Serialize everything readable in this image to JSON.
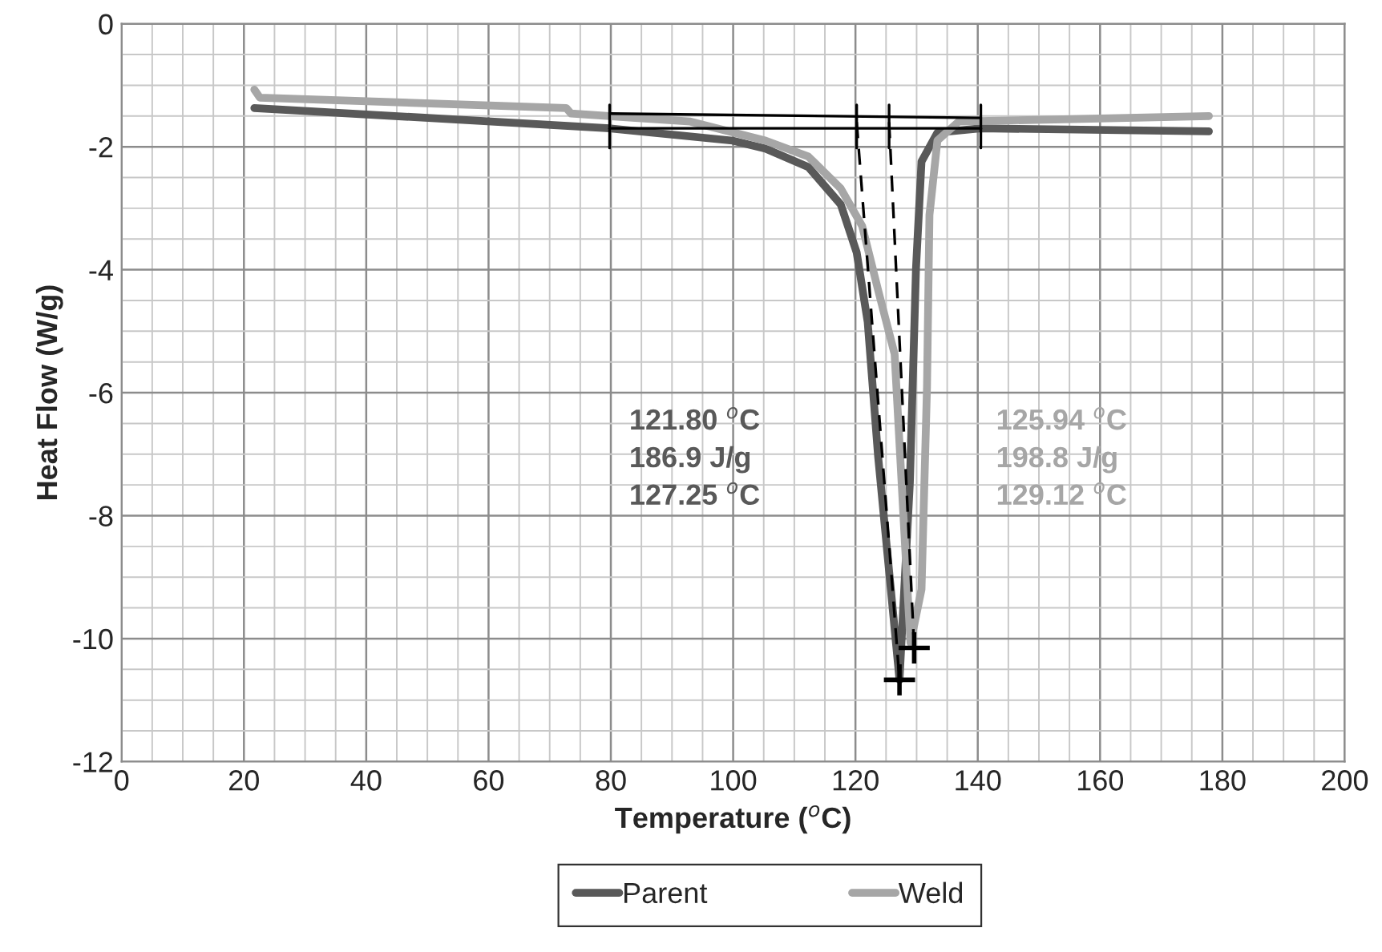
{
  "chart_data": {
    "type": "line",
    "xlabel": "Temperature ($^{o}$C)",
    "ylabel": "Heat Flow (W/g)",
    "xlim": [
      0,
      200
    ],
    "ylim": [
      -12,
      0
    ],
    "xticks": [
      0,
      20,
      40,
      60,
      80,
      100,
      120,
      140,
      160,
      180,
      200
    ],
    "yticks": [
      0,
      -2,
      -4,
      -6,
      -8,
      -10,
      -12
    ],
    "grid": true,
    "legend": "bottom",
    "series": [
      {
        "name": "Parent",
        "color": "#595959",
        "x": [
          21.7,
          79.8,
          99.9,
          105.3,
          112.3,
          117.6,
          120.2,
          122.0,
          123.7,
          127.2,
          128.9,
          129.9,
          130.8,
          133.4,
          140.5,
          177.8
        ],
        "values": [
          -1.37,
          -1.7,
          -1.9,
          -2.03,
          -2.33,
          -2.94,
          -3.72,
          -4.85,
          -7.03,
          -10.67,
          -7.46,
          -3.98,
          -2.24,
          -1.77,
          -1.7,
          -1.75
        ]
      },
      {
        "name": "Weld",
        "color": "#a6a6a6",
        "x": [
          21.7,
          22.6,
          72.7,
          73.5,
          93.0,
          105.3,
          112.3,
          117.6,
          121.1,
          123.7,
          126.4,
          128.6,
          129.0,
          130.8,
          131.7,
          132.1,
          133.4,
          136.9,
          177.8
        ],
        "values": [
          -1.07,
          -1.2,
          -1.37,
          -1.46,
          -1.59,
          -1.9,
          -2.16,
          -2.68,
          -3.29,
          -4.33,
          -5.37,
          -9.37,
          -10.07,
          -9.2,
          -5.9,
          -3.11,
          -1.9,
          -1.59,
          -1.5
        ]
      },
      {
        "color": "#000000",
        "x": [
          79.8,
          140.5
        ],
        "values": [
          -1.46,
          -1.53
        ]
      },
      {
        "color": "#000000",
        "x": [
          79.8,
          140.5
        ],
        "values": [
          -1.7,
          -1.7
        ]
      },
      {
        "color": "#000000",
        "x": [
          79.8,
          79.8
        ],
        "values": [
          -1.32,
          -2.02
        ]
      },
      {
        "color": "#000000",
        "x": [
          120.2,
          120.2
        ],
        "values": [
          -1.32,
          -2.02
        ]
      },
      {
        "color": "#000000",
        "x": [
          125.5,
          125.5
        ],
        "values": [
          -1.32,
          -2.02
        ]
      },
      {
        "color": "#000000",
        "x": [
          140.5,
          140.5
        ],
        "values": [
          -1.32,
          -2.02
        ]
      },
      {
        "color": "#000000",
        "line_style": "dashed",
        "x": [
          120.2,
          127.2
        ],
        "values": [
          -1.6,
          -10.67
        ]
      },
      {
        "color": "#000000",
        "line_style": "dashed",
        "x": [
          125.5,
          129.6
        ],
        "values": [
          -1.6,
          -10.15
        ]
      },
      {
        "type": "scatter",
        "marker": "cross",
        "color": "#000000",
        "x": [
          127.2,
          129.6
        ],
        "values": [
          -10.67,
          -10.15
        ]
      }
    ],
    "annotations": [
      "121.80 $^{o}$C\n186.9 J/g\n127.25 $^{o}$C",
      "125.94 $^{o}$C\n198.8 J/g\n129.12 $^{o}$C"
    ]
  }
}
